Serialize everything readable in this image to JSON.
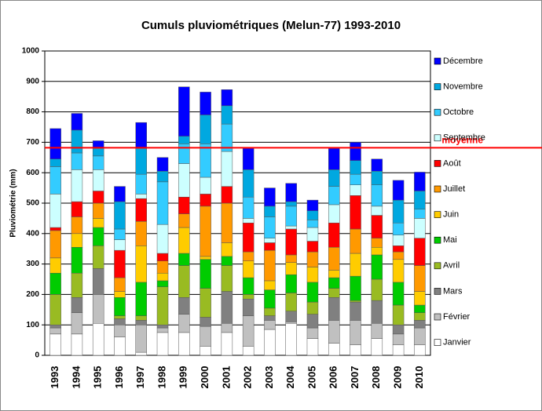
{
  "chart_data": {
    "type": "stacked_bar",
    "title": "Cumuls pluviométriques  (Melun-77) 1993-2010",
    "y_label": "Pluviométrie (mm)",
    "categories": [
      "1993",
      "1994",
      "1995",
      "1996",
      "1997",
      "1998",
      "1999",
      "2000",
      "2001",
      "2002",
      "2003",
      "2004",
      "2005",
      "2006",
      "2007",
      "2008",
      "2009",
      "2010"
    ],
    "ylim": [
      0,
      1000
    ],
    "yticks": [
      0,
      100,
      200,
      300,
      400,
      500,
      600,
      700,
      800,
      900,
      1000
    ],
    "grid": true,
    "reference_line": {
      "label": "moyenne",
      "value": 682,
      "color": "#ff0000"
    },
    "legend": "right",
    "series": [
      {
        "name": "Janvier",
        "color": "#ffffff",
        "values": [
          70,
          70,
          105,
          60,
          10,
          75,
          75,
          30,
          75,
          30,
          85,
          105,
          55,
          40,
          35,
          55,
          35,
          35
        ]
      },
      {
        "name": "Février",
        "color": "#c0c0c0",
        "values": [
          20,
          70,
          95,
          40,
          90,
          15,
          60,
          65,
          30,
          100,
          30,
          5,
          35,
          75,
          80,
          50,
          35,
          55
        ]
      },
      {
        "name": "Mars",
        "color": "#808080",
        "values": [
          10,
          50,
          85,
          20,
          15,
          10,
          55,
          30,
          105,
          55,
          15,
          35,
          45,
          75,
          60,
          75,
          30,
          25
        ]
      },
      {
        "name": "Avril",
        "color": "#99bb22",
        "values": [
          100,
          80,
          75,
          10,
          15,
          125,
          105,
          95,
          85,
          15,
          25,
          60,
          40,
          30,
          5,
          70,
          65,
          25
        ]
      },
      {
        "name": "Mai",
        "color": "#00cc00",
        "values": [
          70,
          85,
          60,
          60,
          110,
          20,
          40,
          95,
          30,
          55,
          60,
          60,
          65,
          35,
          80,
          80,
          75,
          25
        ]
      },
      {
        "name": "Juin",
        "color": "#ffcc00",
        "values": [
          50,
          45,
          30,
          20,
          120,
          25,
          85,
          10,
          45,
          55,
          30,
          40,
          50,
          25,
          75,
          25,
          75,
          45
        ]
      },
      {
        "name": "Juillet",
        "color": "#ff9900",
        "values": [
          90,
          55,
          50,
          45,
          80,
          40,
          45,
          165,
          130,
          30,
          100,
          25,
          50,
          75,
          80,
          30,
          25,
          85
        ]
      },
      {
        "name": "Août",
        "color": "#ff0000",
        "values": [
          10,
          50,
          40,
          90,
          75,
          25,
          55,
          40,
          55,
          95,
          25,
          85,
          35,
          80,
          110,
          75,
          20,
          90
        ]
      },
      {
        "name": "Septembre",
        "color": "#ccffff",
        "values": [
          110,
          105,
          70,
          35,
          15,
          95,
          110,
          55,
          115,
          15,
          15,
          10,
          45,
          60,
          35,
          30,
          35,
          65
        ]
      },
      {
        "name": "Octobre",
        "color": "#33ccff",
        "values": [
          90,
          55,
          45,
          35,
          65,
          140,
          65,
          110,
          90,
          70,
          70,
          65,
          25,
          60,
          35,
          70,
          40,
          30
        ]
      },
      {
        "name": "Novembre",
        "color": "#00a8e0",
        "values": [
          25,
          75,
          25,
          90,
          85,
          35,
          25,
          95,
          60,
          90,
          35,
          15,
          30,
          55,
          45,
          45,
          75,
          60
        ]
      },
      {
        "name": "Décembre",
        "color": "#0000ff",
        "values": [
          100,
          55,
          25,
          50,
          85,
          45,
          162,
          75,
          53,
          70,
          60,
          60,
          35,
          70,
          60,
          40,
          65,
          62
        ]
      }
    ]
  }
}
